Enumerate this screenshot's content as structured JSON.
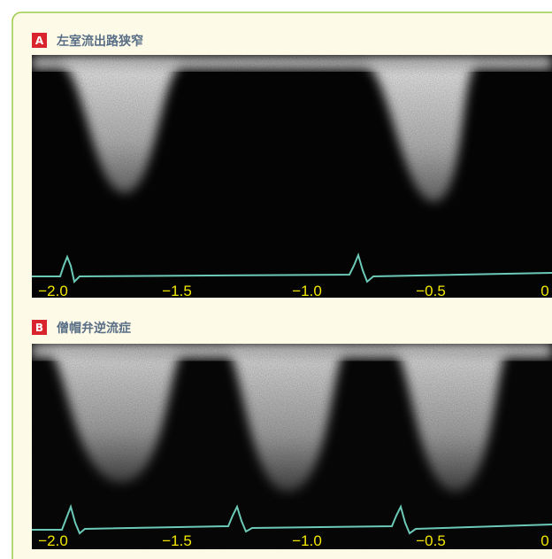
{
  "panels": [
    {
      "label": "A",
      "title": "左室流出路狭窄",
      "axis_labels": [
        "−2.0",
        "−1.5",
        "−1.0",
        "−0.5",
        "0"
      ]
    },
    {
      "label": "B",
      "title": "僧帽弁逆流症",
      "axis_labels": [
        "−2.0",
        "−1.5",
        "−1.0",
        "−0.5",
        "0"
      ]
    }
  ]
}
